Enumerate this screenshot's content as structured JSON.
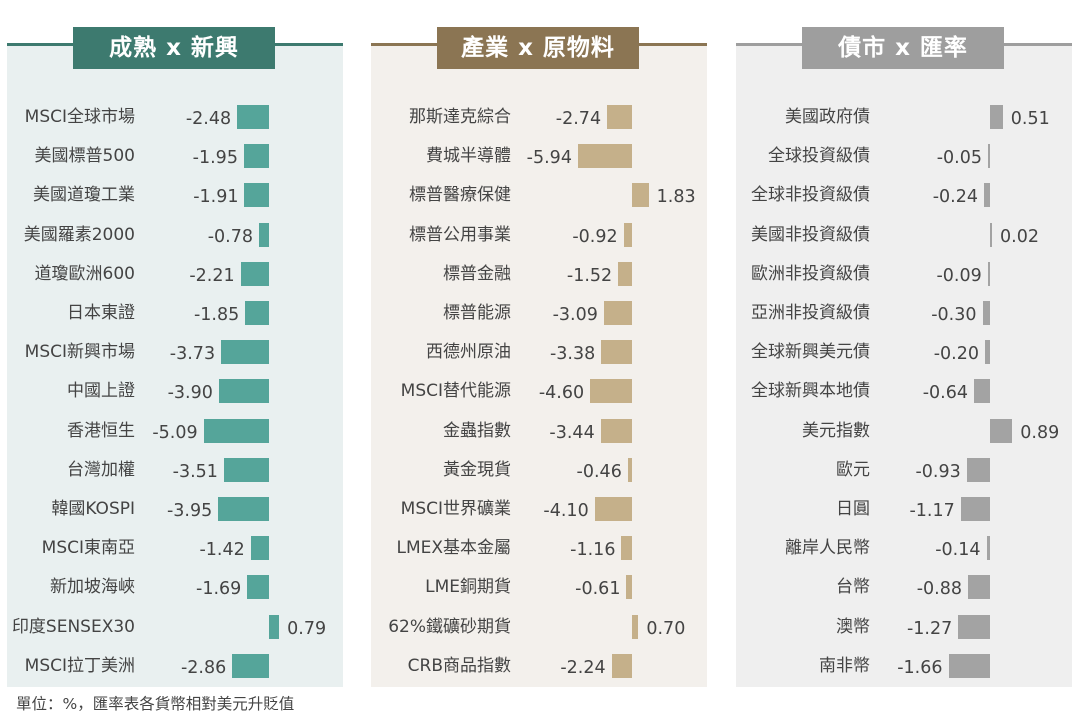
{
  "footnote": "單位：%，匯率表各貨幣相對美元升貶值",
  "colors": {
    "panel1_bar": "#55a59a",
    "panel1_title": "#3d7a6f",
    "panel1_bg": "#e9f0f0",
    "panel2_bar": "#c5b08a",
    "panel2_title": "#8b7553",
    "panel2_bg": "#f3f0ec",
    "panel3_bar": "#a3a3a3",
    "panel3_title": "#9e9e9e",
    "panel3_bg": "#efefef"
  },
  "chart_data": [
    {
      "type": "bar",
      "title": "成熟 x 新興",
      "categories": [
        "MSCI全球市場",
        "美國標普500",
        "美國道瓊工業",
        "美國羅素2000",
        "道瓊歐洲600",
        "日本東證",
        "MSCI新興市場",
        "中國上證",
        "香港恒生",
        "台灣加權",
        "韓國KOSPI",
        "MSCI東南亞",
        "新加坡海峽",
        "印度SENSEX30",
        "MSCI拉丁美洲"
      ],
      "values": [
        -2.48,
        -1.95,
        -1.91,
        -0.78,
        -2.21,
        -1.85,
        -3.73,
        -3.9,
        -5.09,
        -3.51,
        -3.95,
        -1.42,
        -1.69,
        0.79,
        -2.86
      ],
      "labels": [
        "-2.48",
        "-1.95",
        "-1.91",
        "-0.78",
        "-2.21",
        "-1.85",
        "-3.73",
        "-3.90",
        "-5.09",
        "-3.51",
        "-3.95",
        "-1.42",
        "-1.69",
        "0.79",
        "-2.86"
      ]
    },
    {
      "type": "bar",
      "title": "產業 x 原物料",
      "categories": [
        "那斯達克綜合",
        "費城半導體",
        "標普醫療保健",
        "標普公用事業",
        "標普金融",
        "標普能源",
        "西德州原油",
        "MSCI替代能源",
        "金蟲指數",
        "黃金現貨",
        "MSCI世界礦業",
        "LMEX基本金屬",
        "LME銅期貨",
        "62%鐵礦砂期貨",
        "CRB商品指數"
      ],
      "values": [
        -2.74,
        -5.94,
        1.83,
        -0.92,
        -1.52,
        -3.09,
        -3.38,
        -4.6,
        -3.44,
        -0.46,
        -4.1,
        -1.16,
        -0.61,
        0.7,
        -2.24
      ],
      "labels": [
        "-2.74",
        "-5.94",
        "1.83",
        "-0.92",
        "-1.52",
        "-3.09",
        "-3.38",
        "-4.60",
        "-3.44",
        "-0.46",
        "-4.10",
        "-1.16",
        "-0.61",
        "0.70",
        "-2.24"
      ]
    },
    {
      "type": "bar",
      "title": "債市 x 匯率",
      "categories": [
        "美國政府債",
        "全球投資級債",
        "全球非投資級債",
        "美國非投資級債",
        "歐洲非投資級債",
        "亞洲非投資級債",
        "全球新興美元債",
        "全球新興本地債",
        "美元指數",
        "歐元",
        "日圓",
        "離岸人民幣",
        "台幣",
        "澳幣",
        "南非幣"
      ],
      "values": [
        0.51,
        -0.05,
        -0.24,
        0.02,
        -0.09,
        -0.3,
        -0.2,
        -0.64,
        0.89,
        -0.93,
        -1.17,
        -0.14,
        -0.88,
        -1.27,
        -1.66
      ],
      "labels": [
        "0.51",
        "-0.05",
        "-0.24",
        "0.02",
        "-0.09",
        "-0.30",
        "-0.20",
        "-0.64",
        "0.89",
        "-0.93",
        "-1.17",
        "-0.14",
        "-0.88",
        "-1.27",
        "-1.66"
      ]
    }
  ]
}
